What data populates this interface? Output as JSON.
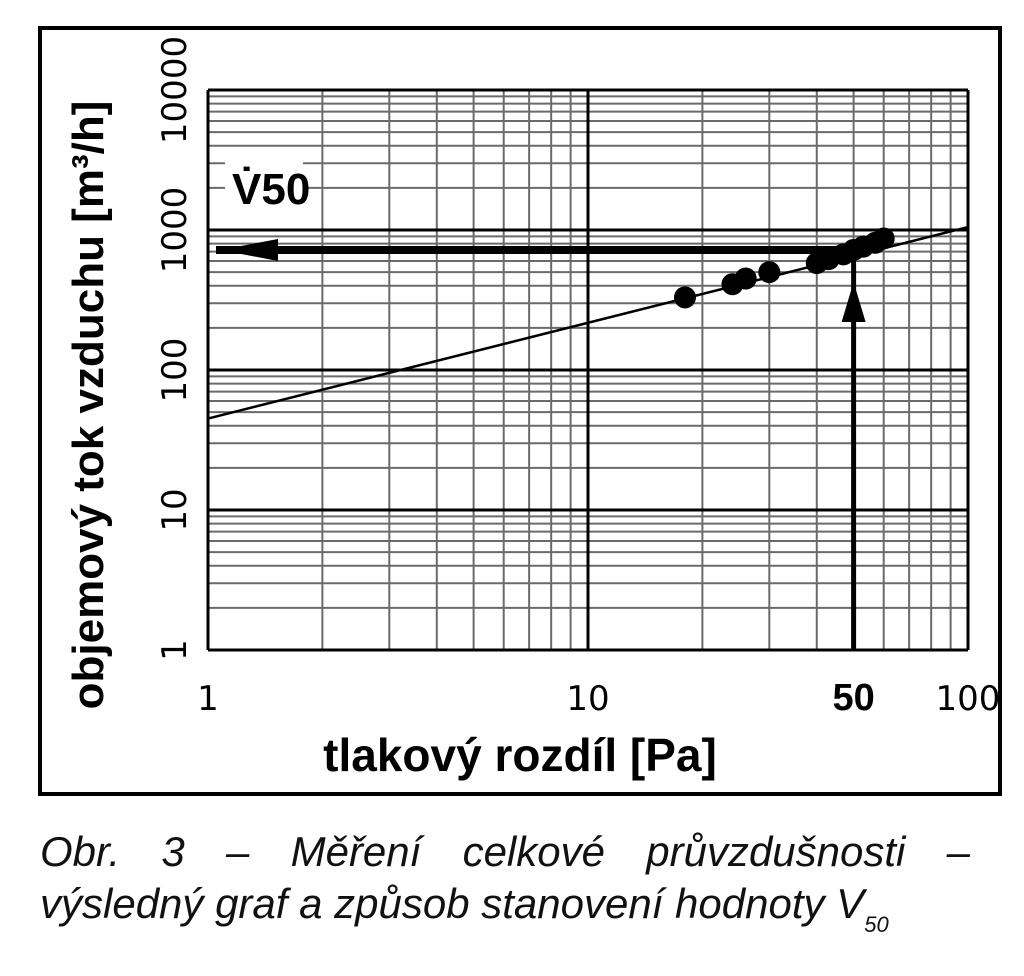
{
  "chart_data": {
    "type": "scatter",
    "xlabel": "tlakový rozdíl [Pa]",
    "ylabel": "objemový tok vzduchu [m³/h]",
    "x_scale": "log",
    "y_scale": "log",
    "xlim": [
      1,
      100
    ],
    "ylim": [
      1,
      10000
    ],
    "x_ticks": [
      "1",
      "10",
      "50",
      "100"
    ],
    "y_ticks": [
      "1",
      "10",
      "100",
      "1000",
      "10000"
    ],
    "grid": true,
    "annotation_label": "V̇50",
    "annotation_x": 50,
    "annotation_y": 720,
    "series": [
      {
        "x": [
          18,
          24,
          26,
          30,
          40,
          43,
          47,
          50,
          53,
          57,
          60
        ],
        "y": [
          330,
          410,
          450,
          500,
          580,
          620,
          670,
          720,
          760,
          810,
          870
        ]
      }
    ],
    "fit_line": {
      "x": [
        1,
        100
      ],
      "y": [
        45,
        1050
      ]
    }
  },
  "caption": {
    "line1": "Obr. 3 – Měření celkové průvzdušnosti –",
    "line2": "výsledný graf a způsob stanovení hodnoty V",
    "line2_sub": "50"
  },
  "colors": {
    "ink": "#000000",
    "grid": "#6a6a6a",
    "background": "#ffffff"
  }
}
